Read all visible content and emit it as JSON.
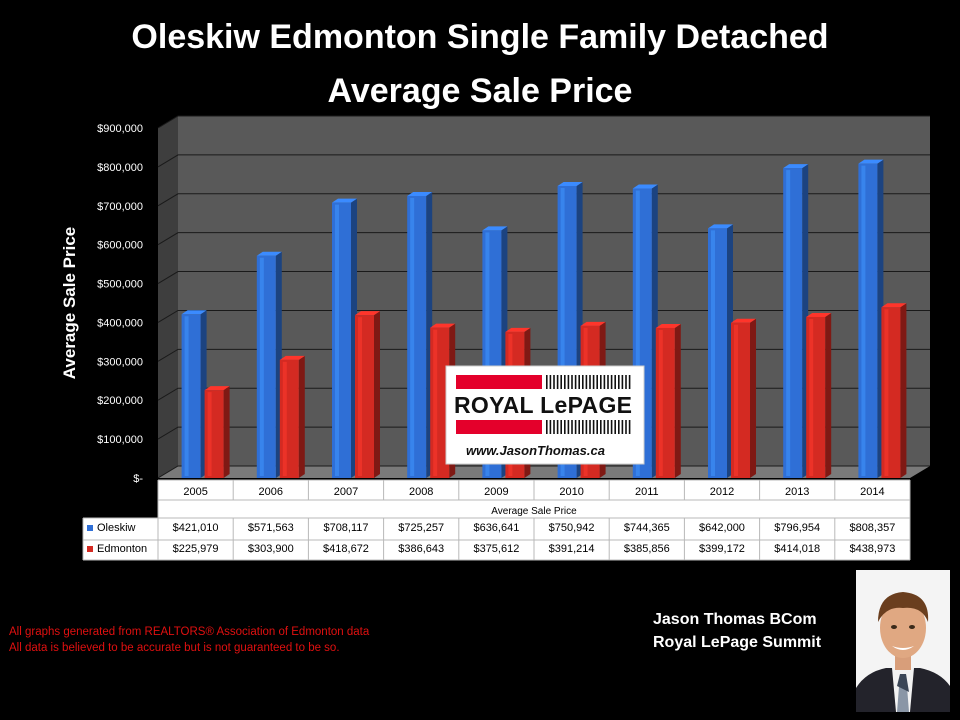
{
  "title": {
    "line1": "Oleskiw Edmonton Single Family Detached",
    "line2": "Average Sale Price"
  },
  "credit": {
    "name": "Jason Thomas BCom",
    "company": "Royal LePage Summit"
  },
  "disclaimer": {
    "line1": "All graphs generated from REALTORS® Association of Edmonton data",
    "line2": "All data is believed to be accurate but is not guaranteed to be so."
  },
  "logo": {
    "brand": "ROYAL LePAGE",
    "url": "www.JasonThomas.ca"
  },
  "colors": {
    "background": "#000000",
    "plot_wall": "#595959",
    "oleskiw": "#2f6fd6",
    "edmonton": "#d42a22"
  },
  "chart_data": {
    "type": "bar",
    "title": "Oleskiw Edmonton Single Family Detached Average Sale Price",
    "xlabel": "Average Sale Price",
    "ylabel": "Average Sale Price",
    "ylim": [
      0,
      900000
    ],
    "yticks": [
      0,
      100000,
      200000,
      300000,
      400000,
      500000,
      600000,
      700000,
      800000,
      900000
    ],
    "ytick_labels": [
      "$-",
      "$100,000",
      "$200,000",
      "$300,000",
      "$400,000",
      "$500,000",
      "$600,000",
      "$700,000",
      "$800,000",
      "$900,000"
    ],
    "categories": [
      "2005",
      "2006",
      "2007",
      "2008",
      "2009",
      "2010",
      "2011",
      "2012",
      "2013",
      "2014"
    ],
    "series": [
      {
        "name": "Oleskiw",
        "color": "#2f6fd6",
        "values": [
          421010,
          571563,
          708117,
          725257,
          636641,
          750942,
          744365,
          642000,
          796954,
          808357
        ],
        "labels": [
          "$421,010",
          "$571,563",
          "$708,117",
          "$725,257",
          "$636,641",
          "$750,942",
          "$744,365",
          "$642,000",
          "$796,954",
          "$808,357"
        ]
      },
      {
        "name": "Edmonton",
        "color": "#d42a22",
        "values": [
          225979,
          303900,
          418672,
          386643,
          375612,
          391214,
          385856,
          399172,
          414018,
          438973
        ],
        "labels": [
          "$225,979",
          "$303,900",
          "$418,672",
          "$386,643",
          "$375,612",
          "$391,214",
          "$385,856",
          "$399,172",
          "$414,018",
          "$438,973"
        ]
      }
    ],
    "grid": true,
    "legend": "data-table"
  }
}
